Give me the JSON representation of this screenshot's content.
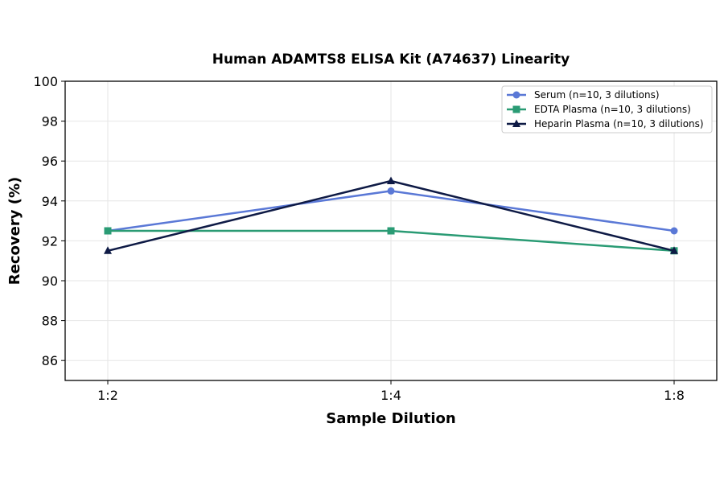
{
  "chart_data": {
    "type": "line",
    "title": "Human ADAMTS8 ELISA Kit (A74637) Linearity",
    "xlabel": "Sample Dilution",
    "ylabel": "Recovery (%)",
    "categories": [
      "1:2",
      "1:4",
      "1:8"
    ],
    "ylim": [
      85,
      100
    ],
    "yticks": [
      86,
      88,
      90,
      92,
      94,
      96,
      98,
      100
    ],
    "grid": true,
    "legend_position": "top-right",
    "series": [
      {
        "name": "Serum (n=10, 3 dilutions)",
        "values": [
          92.5,
          94.5,
          92.5
        ],
        "color": "#5a78d6",
        "marker": "circle"
      },
      {
        "name": "EDTA Plasma (n=10, 3 dilutions)",
        "values": [
          92.5,
          92.5,
          91.5
        ],
        "color": "#2a9b74",
        "marker": "square"
      },
      {
        "name": "Heparin Plasma (n=10, 3 dilutions)",
        "values": [
          91.5,
          95.0,
          91.5
        ],
        "color": "#0e1a45",
        "marker": "triangle"
      }
    ]
  }
}
